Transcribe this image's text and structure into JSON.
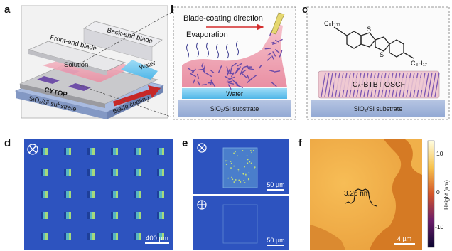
{
  "panels": {
    "a": {
      "label": "a",
      "back_blade": "Back-end blade",
      "front_blade": "Front-end blade",
      "solution": "Solution",
      "water": "Water",
      "cytop": "CYTOP",
      "substrate": "SiO₂/Si substrate",
      "blade_coating": "Blade coating"
    },
    "b": {
      "label": "b",
      "direction": "Blade-coating direction",
      "evaporation": "Evaporation",
      "water": "Water",
      "substrate": "SiO₂/Si substrate"
    },
    "c": {
      "label": "c",
      "r1": "C₈H₁₇",
      "r2": "C₈H₁₇",
      "s1": "S",
      "s2": "S",
      "film": "C₈-BTBT OSCF",
      "substrate": "SiO₂/Si substrate"
    },
    "d": {
      "label": "d",
      "scale": "400 µm"
    },
    "e": {
      "label": "e",
      "scale_top": "50 µm",
      "scale_bottom": "50 µm"
    },
    "f": {
      "label": "f",
      "step": "3.26 nm",
      "scale": "4 µm",
      "colorbar_title": "Height (nm)",
      "ticks": [
        "10",
        "0",
        "-10"
      ]
    }
  },
  "colors": {
    "optical_bg": "#2d53bf",
    "afm_bright": "#f4b34d",
    "afm_dark": "#c46014",
    "solution_pink": "#f0a7b5",
    "water_blue": "#6ec7ef"
  }
}
